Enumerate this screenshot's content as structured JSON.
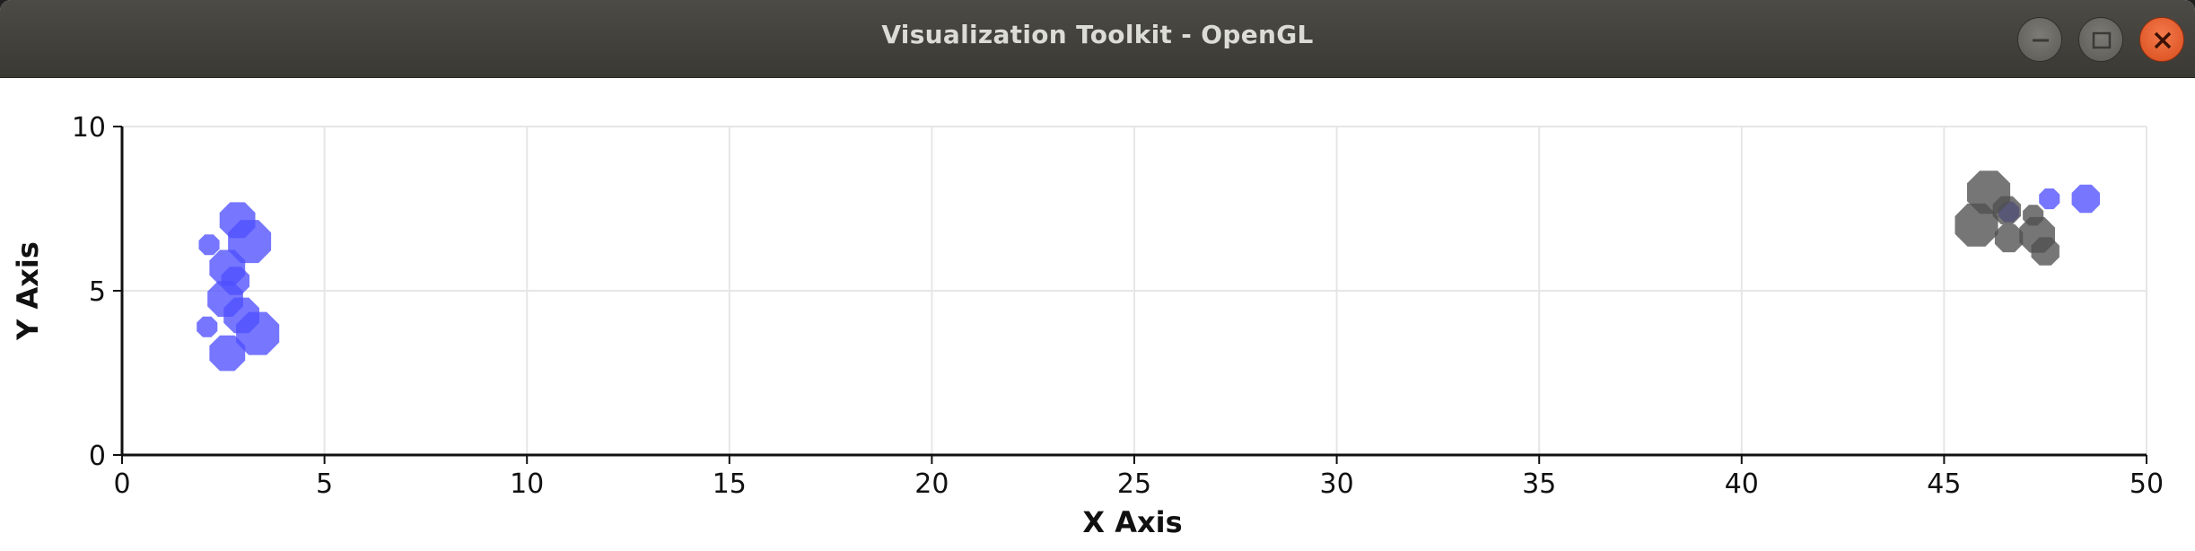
{
  "window": {
    "title": "Visualization Toolkit - OpenGL",
    "buttons": {
      "minimize": "minimize-icon",
      "maximize": "maximize-icon",
      "close": "close-icon"
    },
    "colors": {
      "titlebar": "#3e3d39",
      "close": "#e95420"
    }
  },
  "chart_data": {
    "type": "scatter",
    "title": "",
    "xlabel": "X Axis",
    "ylabel": "Y Axis",
    "xlim": [
      0,
      50
    ],
    "ylim": [
      0,
      10
    ],
    "x_ticks": [
      0,
      5,
      10,
      15,
      20,
      25,
      30,
      35,
      40,
      45,
      50
    ],
    "y_ticks": [
      0,
      5,
      10
    ],
    "x_tick_labels": [
      "0",
      "5",
      "10",
      "15",
      "20",
      "25",
      "30",
      "35",
      "40",
      "45",
      "50"
    ],
    "y_tick_labels": [
      "0",
      "5",
      "10"
    ],
    "grid": true,
    "series": [
      {
        "color": "#5050ff",
        "points": [
          {
            "x": 2.85,
            "y": 7.15,
            "size": 3
          },
          {
            "x": 3.15,
            "y": 6.5,
            "size": 4
          },
          {
            "x": 2.15,
            "y": 6.4,
            "size": 1
          },
          {
            "x": 2.6,
            "y": 5.7,
            "size": 3
          },
          {
            "x": 2.8,
            "y": 5.3,
            "size": 2
          },
          {
            "x": 2.55,
            "y": 4.75,
            "size": 3
          },
          {
            "x": 2.95,
            "y": 4.25,
            "size": 3
          },
          {
            "x": 2.1,
            "y": 3.9,
            "size": 1
          },
          {
            "x": 3.35,
            "y": 3.7,
            "size": 4
          },
          {
            "x": 2.6,
            "y": 3.1,
            "size": 3
          },
          {
            "x": 46.6,
            "y": 7.4,
            "size": 1
          },
          {
            "x": 47.6,
            "y": 7.8,
            "size": 1
          },
          {
            "x": 48.5,
            "y": 7.8,
            "size": 2
          }
        ]
      },
      {
        "color": "#505050",
        "points": [
          {
            "x": 46.1,
            "y": 8.0,
            "size": 4
          },
          {
            "x": 45.8,
            "y": 7.0,
            "size": 4
          },
          {
            "x": 46.55,
            "y": 7.45,
            "size": 2
          },
          {
            "x": 47.2,
            "y": 7.3,
            "size": 1
          },
          {
            "x": 46.6,
            "y": 6.6,
            "size": 2
          },
          {
            "x": 47.3,
            "y": 6.7,
            "size": 3
          },
          {
            "x": 47.5,
            "y": 6.2,
            "size": 2
          }
        ]
      }
    ]
  }
}
